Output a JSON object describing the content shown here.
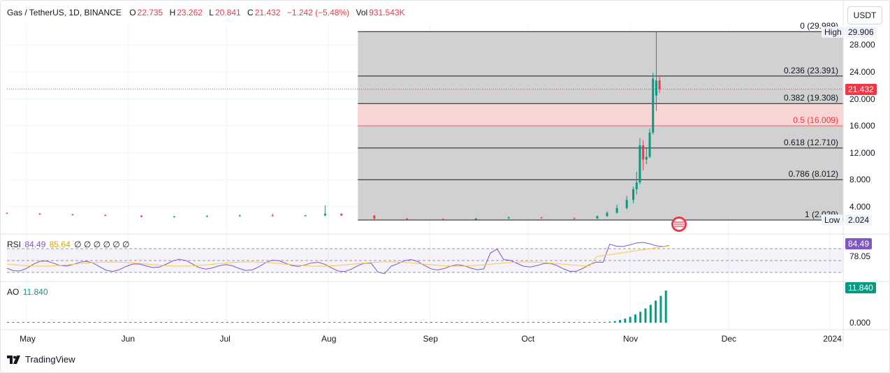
{
  "header": {
    "symbol": "Gas / TetherUS, 1D, BINANCE",
    "o_label": "O",
    "o_value": "22.735",
    "h_label": "H",
    "h_value": "23.262",
    "l_label": "L",
    "l_value": "20.841",
    "c_label": "C",
    "c_value": "21.432",
    "change": "−1.242 (−5.48%)",
    "vol_label": "Vol",
    "vol_value": "931.543K",
    "currency": "USDT"
  },
  "colors": {
    "up": "#089981",
    "down": "#f23645",
    "rsi": "#7e57c2",
    "rsi_ma": "#f7c948",
    "fib_band": "#cfcfcf",
    "fib_pink": "#f9d4d4",
    "price_tag": "#f23645",
    "dark_tag": "#131722"
  },
  "price_axis": {
    "ticks": [
      "28.000",
      "24.000",
      "20.000",
      "16.000",
      "12.000",
      "8.000",
      "4.000"
    ],
    "high_label": "High",
    "high_value": "29.906",
    "low_label": "Low",
    "low_value": "2.024",
    "last_value": "21.432"
  },
  "fib": {
    "levels": [
      {
        "label": "0 (29.989)",
        "value": 29.989
      },
      {
        "label": "0.236 (23.391)",
        "value": 23.391
      },
      {
        "label": "0.382 (19.308)",
        "value": 19.308
      },
      {
        "label": "0.5 (16.009)",
        "value": 16.009
      },
      {
        "label": "0.618 (12.710)",
        "value": 12.71
      },
      {
        "label": "0.786 (8.012)",
        "value": 8.012
      },
      {
        "label": "1 (2.029)",
        "value": 2.029
      }
    ]
  },
  "rsi": {
    "label": "RSI",
    "value1": "84.49",
    "value2": "85.64",
    "placeholders": "∅ ∅ ∅ ∅ ∅ ∅",
    "axis_tag": "84.49",
    "axis_label": "78.05"
  },
  "ao": {
    "label": "AO",
    "value": "11.840",
    "axis_tag": "11.840",
    "axis_zero": "0.000"
  },
  "time_axis": [
    "May",
    "Jun",
    "Jul",
    "Aug",
    "Sep",
    "Oct",
    "Nov",
    "Dec",
    "2024"
  ],
  "footer": {
    "brand": "TradingView"
  },
  "chart_data": {
    "type": "candlestick",
    "title": "Gas / TetherUS, 1D, BINANCE",
    "ylim": [
      1.2,
      31.5
    ],
    "x_range": [
      "2023-04-25",
      "2024-01-05"
    ],
    "candles": [
      {
        "d": "2023-04-25",
        "o": 3.05,
        "h": 3.15,
        "l": 2.95,
        "c": 3.0
      },
      {
        "d": "2023-05-05",
        "o": 2.95,
        "h": 3.05,
        "l": 2.8,
        "c": 2.85
      },
      {
        "d": "2023-05-15",
        "o": 2.85,
        "h": 2.95,
        "l": 2.7,
        "c": 2.75
      },
      {
        "d": "2023-05-25",
        "o": 2.75,
        "h": 2.85,
        "l": 2.6,
        "c": 2.65
      },
      {
        "d": "2023-06-05",
        "o": 2.65,
        "h": 2.75,
        "l": 2.45,
        "c": 2.5
      },
      {
        "d": "2023-06-15",
        "o": 2.5,
        "h": 2.65,
        "l": 2.4,
        "c": 2.55
      },
      {
        "d": "2023-06-25",
        "o": 2.55,
        "h": 2.75,
        "l": 2.45,
        "c": 2.6
      },
      {
        "d": "2023-07-05",
        "o": 2.6,
        "h": 2.85,
        "l": 2.5,
        "c": 2.7
      },
      {
        "d": "2023-07-15",
        "o": 2.7,
        "h": 3.0,
        "l": 2.55,
        "c": 2.65
      },
      {
        "d": "2023-07-25",
        "o": 2.65,
        "h": 2.8,
        "l": 2.55,
        "c": 2.7
      },
      {
        "d": "2023-07-31",
        "o": 2.7,
        "h": 4.2,
        "l": 2.6,
        "c": 2.95
      },
      {
        "d": "2023-08-05",
        "o": 2.95,
        "h": 3.0,
        "l": 2.6,
        "c": 2.7
      },
      {
        "d": "2023-08-15",
        "o": 2.7,
        "h": 2.75,
        "l": 2.1,
        "c": 2.25
      },
      {
        "d": "2023-08-25",
        "o": 2.25,
        "h": 2.35,
        "l": 2.05,
        "c": 2.15
      },
      {
        "d": "2023-09-05",
        "o": 2.15,
        "h": 2.3,
        "l": 2.03,
        "c": 2.1
      },
      {
        "d": "2023-09-15",
        "o": 2.1,
        "h": 2.35,
        "l": 2.05,
        "c": 2.25
      },
      {
        "d": "2023-09-25",
        "o": 2.25,
        "h": 2.55,
        "l": 2.2,
        "c": 2.4
      },
      {
        "d": "2023-10-05",
        "o": 2.4,
        "h": 2.5,
        "l": 2.2,
        "c": 2.3
      },
      {
        "d": "2023-10-15",
        "o": 2.3,
        "h": 2.4,
        "l": 2.15,
        "c": 2.25
      },
      {
        "d": "2023-10-22",
        "o": 2.25,
        "h": 2.7,
        "l": 2.2,
        "c": 2.6
      },
      {
        "d": "2023-10-25",
        "o": 2.6,
        "h": 3.3,
        "l": 2.5,
        "c": 3.1
      },
      {
        "d": "2023-10-28",
        "o": 3.1,
        "h": 4.3,
        "l": 3.0,
        "c": 3.8
      },
      {
        "d": "2023-10-31",
        "o": 3.8,
        "h": 5.6,
        "l": 3.6,
        "c": 5.0
      },
      {
        "d": "2023-11-02",
        "o": 5.0,
        "h": 7.0,
        "l": 4.5,
        "c": 6.6
      },
      {
        "d": "2023-11-03",
        "o": 6.6,
        "h": 9.2,
        "l": 5.8,
        "c": 7.6
      },
      {
        "d": "2023-11-04",
        "o": 7.6,
        "h": 14.2,
        "l": 7.3,
        "c": 13.1
      },
      {
        "d": "2023-11-05",
        "o": 13.1,
        "h": 13.9,
        "l": 9.4,
        "c": 11.0
      },
      {
        "d": "2023-11-06",
        "o": 11.0,
        "h": 12.7,
        "l": 10.3,
        "c": 11.4
      },
      {
        "d": "2023-11-07",
        "o": 11.4,
        "h": 15.6,
        "l": 11.2,
        "c": 15.0
      },
      {
        "d": "2023-11-08",
        "o": 15.0,
        "h": 23.9,
        "l": 14.7,
        "c": 23.0
      },
      {
        "d": "2023-11-09",
        "o": 20.5,
        "h": 29.906,
        "l": 18.2,
        "c": 22.735
      },
      {
        "d": "2023-11-10",
        "o": 22.735,
        "h": 23.262,
        "l": 20.841,
        "c": 21.432
      }
    ],
    "rsi": {
      "value": 84.49,
      "ma": 85.64,
      "upper": 70,
      "lower": 30
    },
    "ao": {
      "value": 11.84
    }
  }
}
